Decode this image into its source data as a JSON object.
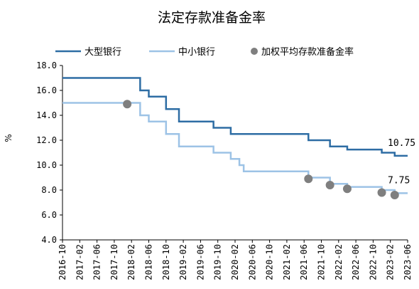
{
  "chart_data": {
    "type": "line",
    "title": "法定存款准备金率",
    "ylabel": "%",
    "ylim": [
      4.0,
      18.0
    ],
    "yticks": [
      "4.0",
      "6.0",
      "8.0",
      "10.0",
      "12.0",
      "14.0",
      "16.0",
      "18.0"
    ],
    "xlim": [
      "2016-10",
      "2023-06"
    ],
    "xticks": [
      "2016-10",
      "2017-02",
      "2017-06",
      "2017-10",
      "2018-02",
      "2018-06",
      "2018-10",
      "2019-02",
      "2019-06",
      "2019-10",
      "2020-02",
      "2020-06",
      "2020-10",
      "2021-02",
      "2021-06",
      "2021-10",
      "2022-02",
      "2022-06",
      "2022-10",
      "2023-02",
      "2023-06"
    ],
    "legend_position": "top",
    "series": [
      {
        "name": "大型银行",
        "kind": "step",
        "color": "#2e6da4",
        "points": [
          [
            "2016-10",
            17.0
          ],
          [
            "2018-04",
            16.0
          ],
          [
            "2018-06",
            15.5
          ],
          [
            "2018-10",
            14.5
          ],
          [
            "2019-01",
            13.5
          ],
          [
            "2019-09",
            13.0
          ],
          [
            "2020-01",
            12.5
          ],
          [
            "2021-07",
            12.0
          ],
          [
            "2021-12",
            11.5
          ],
          [
            "2022-04",
            11.25
          ],
          [
            "2022-12",
            11.0
          ],
          [
            "2023-03",
            10.75
          ],
          [
            "2023-06",
            10.75
          ]
        ],
        "end_label": "10.75"
      },
      {
        "name": "中小银行",
        "kind": "step",
        "color": "#9dc3e6",
        "points": [
          [
            "2016-10",
            15.0
          ],
          [
            "2018-04",
            14.0
          ],
          [
            "2018-06",
            13.5
          ],
          [
            "2018-10",
            12.5
          ],
          [
            "2019-01",
            11.5
          ],
          [
            "2019-09",
            11.0
          ],
          [
            "2020-01",
            10.5
          ],
          [
            "2020-03",
            10.0
          ],
          [
            "2020-04",
            9.5
          ],
          [
            "2021-07",
            9.0
          ],
          [
            "2021-12",
            8.5
          ],
          [
            "2022-04",
            8.25
          ],
          [
            "2022-12",
            8.0
          ],
          [
            "2023-03",
            7.75
          ],
          [
            "2023-06",
            7.75
          ]
        ],
        "end_label": "7.75"
      },
      {
        "name": "加权平均存款准备金率",
        "kind": "scatter",
        "color": "#7f7f7f",
        "points": [
          [
            "2018-01",
            14.9
          ],
          [
            "2021-07",
            8.9
          ],
          [
            "2021-12",
            8.4
          ],
          [
            "2022-04",
            8.1
          ],
          [
            "2022-12",
            7.8
          ],
          [
            "2023-03",
            7.6
          ]
        ]
      }
    ]
  }
}
